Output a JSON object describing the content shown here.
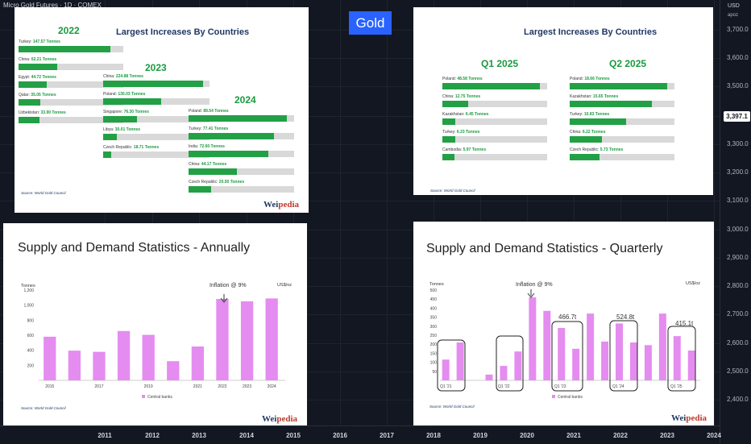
{
  "symbol": "Micro Gold Futures · 1D · COMEX",
  "price_axis": {
    "currency": "USD",
    "unit": "apoz",
    "labels": [
      "3,700.0",
      "3,600.0",
      "3,500.0",
      "3,397.1",
      "3,300.0",
      "3,200.0",
      "3,100.0",
      "3,000.0",
      "2,900.0",
      "2,800.0",
      "2,700.0",
      "2,600.0",
      "2,500.0",
      "2,400.0"
    ],
    "current_price": "3,397.1"
  },
  "time_axis": [
    "2011",
    "2012",
    "2013",
    "2014",
    "2015",
    "2016",
    "2017",
    "2018",
    "2019",
    "2020",
    "2021",
    "2022",
    "2023",
    "2024"
  ],
  "gold_label": "Gold",
  "panel1": {
    "title": "Largest Increases By Countries",
    "source": "Source: World Gold Council",
    "logo_a": "Wei",
    "logo_b": "pedia",
    "groups": [
      {
        "year": "2022",
        "rows": [
          {
            "country": "Turkey:",
            "amount": "147.57 Tonnes",
            "value": 147.57
          },
          {
            "country": "China:",
            "amount": "62.21 Tonnes",
            "value": 62.21
          },
          {
            "country": "Egypt:",
            "amount": "44.72 Tonnes",
            "value": 44.72
          },
          {
            "country": "Qatar:",
            "amount": "35.05 Tonnes",
            "value": 35.05
          },
          {
            "country": "Uzbekistan:",
            "amount": "33.90 Tonnes",
            "value": 33.9
          }
        ]
      },
      {
        "year": "2023",
        "rows": [
          {
            "country": "China:",
            "amount": "224.88 Tonnes",
            "value": 224.88
          },
          {
            "country": "Poland:",
            "amount": "130.03 Tonnes",
            "value": 130.03
          },
          {
            "country": "Singapore:",
            "amount": "76.30 Tonnes",
            "value": 76.3
          },
          {
            "country": "Libya:",
            "amount": "30.01 Tonnes",
            "value": 30.01
          },
          {
            "country": "Czech Republic:",
            "amount": "18.71 Tonnes",
            "value": 18.71
          }
        ]
      },
      {
        "year": "2024",
        "rows": [
          {
            "country": "Poland:",
            "amount": "89.54 Tonnes",
            "value": 89.54
          },
          {
            "country": "Turkey:",
            "amount": "77.41 Tonnes",
            "value": 77.41
          },
          {
            "country": "India:",
            "amount": "72.60 Tonnes",
            "value": 72.6
          },
          {
            "country": "China:",
            "amount": "44.17 Tonnes",
            "value": 44.17
          },
          {
            "country": "Czech Republic:",
            "amount": "20.50 Tonnes",
            "value": 20.5
          }
        ]
      }
    ]
  },
  "panel2": {
    "title": "Largest Increases By Countries",
    "source": "Source: World Gold Council",
    "groups": [
      {
        "period": "Q1 2025",
        "rows": [
          {
            "country": "Poland:",
            "amount": "48.58 Tonnes",
            "value": 48.58
          },
          {
            "country": "China:",
            "amount": "12.75 Tonnes",
            "value": 12.75
          },
          {
            "country": "Kazakhstan:",
            "amount": "6.45 Tonnes",
            "value": 6.45
          },
          {
            "country": "Turkey:",
            "amount": "6.33 Tonnes",
            "value": 6.33
          },
          {
            "country": "Cambodia:",
            "amount": "5.97 Tonnes",
            "value": 5.97
          }
        ]
      },
      {
        "period": "Q2 2025",
        "rows": [
          {
            "country": "Poland:",
            "amount": "18.66 Tonnes",
            "value": 18.66
          },
          {
            "country": "Kazakhstan:",
            "amount": "15.65 Tonnes",
            "value": 15.65
          },
          {
            "country": "Turkey:",
            "amount": "10.83 Tonnes",
            "value": 10.83
          },
          {
            "country": "China:",
            "amount": "6.22 Tonnes",
            "value": 6.22
          },
          {
            "country": "Czech Republic:",
            "amount": "5.73 Tonnes",
            "value": 5.73
          }
        ]
      }
    ]
  },
  "panel3": {
    "title": "Supply and Demand Statistics  - Annually",
    "source": "Source: World Gold Council",
    "logo_a": "Wei",
    "logo_b": "pedia",
    "annotation": "Inflation @ 9%",
    "unit_left": "Tonnes",
    "unit_right": "US$/oz"
  },
  "panel4": {
    "title": "Supply and Demand Statistics  - Quarterly",
    "source": "Source: World Gold Council",
    "logo_a": "Wei",
    "logo_b": "pedia",
    "annotation": "Inflation @ 9%",
    "unit_left": "Tonnes",
    "unit_right": "US$/oz",
    "box_labels": [
      "466.7t",
      "524.8t",
      "415.1t"
    ]
  },
  "chart_data": [
    {
      "type": "bar",
      "title": "Supply and Demand Statistics  - Annually",
      "ylabel": "Tonnes",
      "ylim": [
        0,
        1200
      ],
      "yticks": [
        200,
        400,
        600,
        800,
        "1,000",
        "1,200"
      ],
      "categories": [
        "2015",
        "2016",
        "2017",
        "2018",
        "2019",
        "2020",
        "2021",
        "2022",
        "2023",
        "2024"
      ],
      "xtick_labels": [
        "2015",
        "2017",
        "2019",
        "2021",
        "2022",
        "2023",
        "2024"
      ],
      "series": [
        {
          "name": "Central banks",
          "color": "#e58cf0",
          "values": [
            580,
            395,
            379,
            656,
            605,
            255,
            450,
            1082,
            1051,
            1089
          ]
        }
      ],
      "annotations": [
        "Inflation @ 9%"
      ]
    },
    {
      "type": "bar",
      "title": "Supply and Demand Statistics  - Quarterly",
      "ylabel": "Tonnes",
      "ylim": [
        0,
        500
      ],
      "yticks": [
        50,
        100,
        150,
        200,
        250,
        300,
        350,
        400,
        450,
        500
      ],
      "xtick_labels": [
        "Q1 '21",
        "Q1 '22",
        "Q1 '23",
        "Q1 '24",
        "Q1 '25"
      ],
      "series": [
        {
          "name": "Central banks",
          "color": "#e58cf0",
          "values": [
            115,
            210,
            0,
            32,
            80,
            160,
            460,
            385,
            290,
            175,
            370,
            215,
            315,
            210,
            195,
            370,
            245,
            165
          ]
        }
      ],
      "annotations": [
        "Inflation @ 9%",
        "466.7t",
        "524.8t",
        "415.1t"
      ]
    }
  ]
}
